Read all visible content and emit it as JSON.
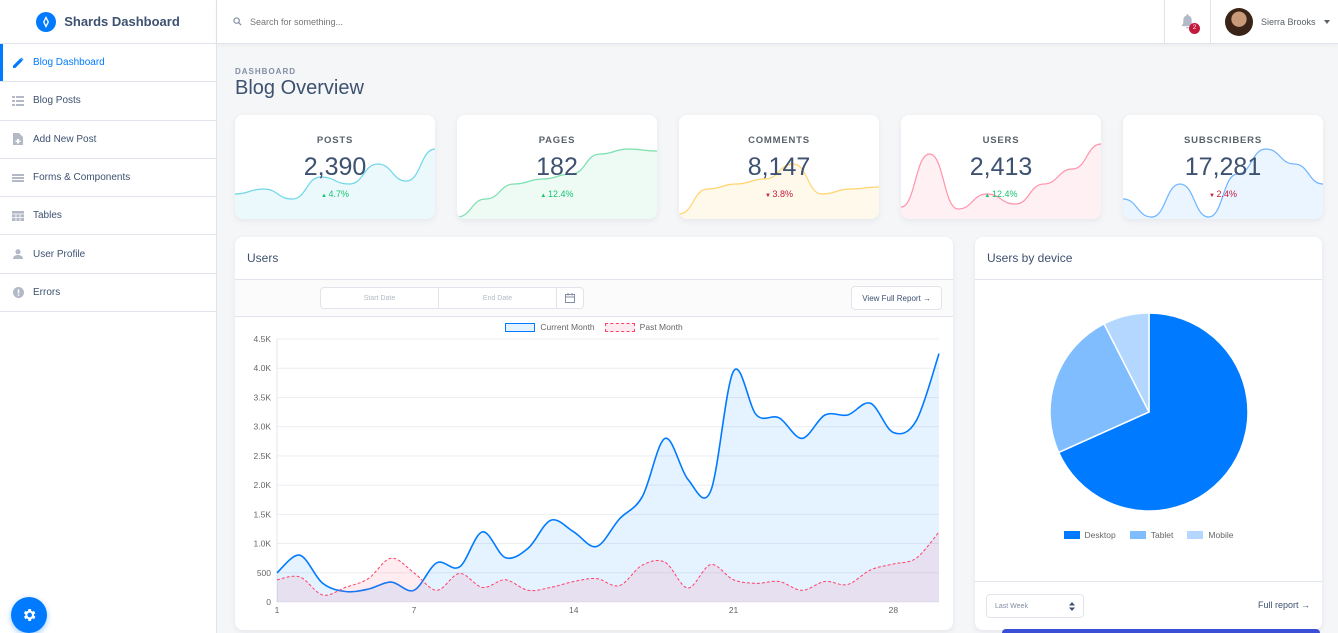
{
  "brand": {
    "name": "Shards Dashboard"
  },
  "sidebar": {
    "items": [
      {
        "label": "Blog Dashboard",
        "icon": "pencil-icon",
        "active": true
      },
      {
        "label": "Blog Posts",
        "icon": "list-icon",
        "active": false
      },
      {
        "label": "Add New Post",
        "icon": "note-add-icon",
        "active": false
      },
      {
        "label": "Forms & Components",
        "icon": "forms-icon",
        "active": false
      },
      {
        "label": "Tables",
        "icon": "table-icon",
        "active": false
      },
      {
        "label": "User Profile",
        "icon": "person-icon",
        "active": false
      },
      {
        "label": "Errors",
        "icon": "error-icon",
        "active": false
      }
    ]
  },
  "topbar": {
    "search_placeholder": "Search for something...",
    "notification_count": "2",
    "user_name": "Sierra Brooks"
  },
  "page": {
    "subtitle": "DASHBOARD",
    "title": "Blog Overview"
  },
  "stats": [
    {
      "label": "POSTS",
      "value": "2,390",
      "change": "4.7%",
      "direction": "up",
      "color": "#00b8d8"
    },
    {
      "label": "PAGES",
      "value": "182",
      "change": "12.4%",
      "direction": "up",
      "color": "#17c671"
    },
    {
      "label": "COMMENTS",
      "value": "8,147",
      "change": "3.8%",
      "direction": "down",
      "color": "#ffb400"
    },
    {
      "label": "USERS",
      "value": "2,413",
      "change": "12.4%",
      "direction": "up",
      "color": "#ff4169"
    },
    {
      "label": "SUBSCRIBERS",
      "value": "17,281",
      "change": "2.4%",
      "direction": "down",
      "color": "#007bff"
    }
  ],
  "users_card": {
    "title": "Users",
    "start_date_placeholder": "Start Date",
    "end_date_placeholder": "End Date",
    "report_button": "View Full Report →"
  },
  "device_card": {
    "title": "Users by device",
    "period": "Last Week",
    "full_report": "Full report →"
  },
  "chart_data": [
    {
      "type": "line",
      "title": "",
      "x": [
        1,
        2,
        3,
        4,
        5,
        6,
        7,
        8,
        9,
        10,
        11,
        12,
        13,
        14,
        15,
        16,
        17,
        18,
        19,
        20,
        21,
        22,
        23,
        24,
        25,
        26,
        27,
        28,
        29,
        30
      ],
      "x_ticks": [
        "1",
        "7",
        "14",
        "21",
        "28"
      ],
      "y_ticks": [
        "0",
        "500",
        "1.0K",
        "1.5K",
        "2.0K",
        "2.5K",
        "3.0K",
        "3.5K",
        "4.0K",
        "4.5K"
      ],
      "ylim": [
        0,
        4500
      ],
      "series": [
        {
          "name": "Current Month",
          "color": "#007bff",
          "fill": "rgba(0,123,255,0.1)",
          "values": [
            500,
            800,
            320,
            180,
            220,
            340,
            200,
            670,
            600,
            1200,
            760,
            920,
            1400,
            1200,
            950,
            1420,
            1800,
            2800,
            2100,
            1900,
            3950,
            3200,
            3150,
            2800,
            3200,
            3200,
            3400,
            2900,
            3100,
            4250
          ]
        },
        {
          "name": "Past Month",
          "color": "#ff4169",
          "fill": "rgba(255,65,105,0.1)",
          "values": [
            380,
            430,
            120,
            250,
            400,
            750,
            500,
            200,
            490,
            250,
            380,
            200,
            250,
            350,
            400,
            280,
            630,
            680,
            240,
            640,
            380,
            320,
            350,
            200,
            350,
            300,
            550,
            650,
            750,
            1200
          ]
        }
      ]
    },
    {
      "type": "pie",
      "categories": [
        "Desktop",
        "Tablet",
        "Mobile"
      ],
      "values": [
        68.3,
        24.2,
        7.5
      ],
      "colors": [
        "#007bff",
        "#80bdff",
        "#b3d7ff"
      ]
    }
  ]
}
